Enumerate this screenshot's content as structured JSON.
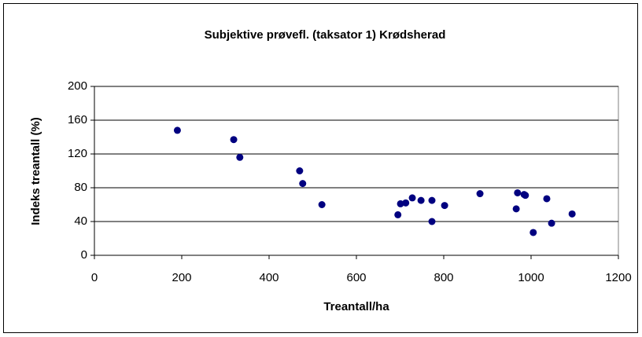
{
  "chart_data": {
    "type": "scatter",
    "title": "Subjektive prøvefl. (taksator 1) Krødsherad",
    "x_label": "Treantall/ha",
    "y_label": "Indeks treantall (%)",
    "color": "#000080",
    "grid": true,
    "xlim": [
      0,
      1200
    ],
    "xticks": [
      0,
      200,
      400,
      600,
      800,
      1000,
      1200
    ],
    "ylim": [
      0,
      200
    ],
    "yticks": [
      0,
      40,
      80,
      120,
      160,
      200
    ],
    "x": [
      190,
      319,
      333,
      470,
      477,
      521,
      695,
      701,
      713,
      728,
      748,
      773,
      773,
      802,
      883,
      966,
      969,
      984,
      987,
      1005,
      1036,
      1047,
      1094
    ],
    "values": [
      148,
      137,
      116,
      100,
      85,
      60,
      48,
      61,
      62,
      68,
      65,
      65,
      40,
      59,
      73,
      55,
      74,
      72,
      71,
      27,
      67,
      38,
      49
    ]
  }
}
